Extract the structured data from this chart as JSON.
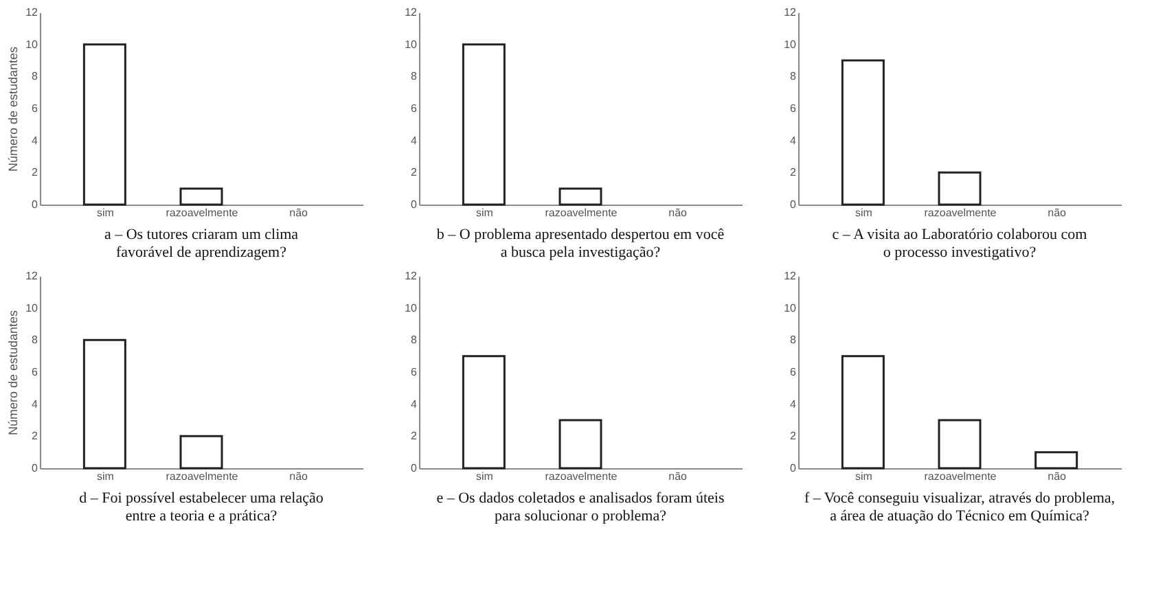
{
  "chart_data": [
    {
      "type": "bar",
      "title": [
        "a – Os tutores criaram um clima",
        "favorável de aprendizagem?"
      ],
      "ylabel": "Número de estudantes",
      "categories": [
        "sim",
        "razoavelmente",
        "não"
      ],
      "values": [
        10,
        1,
        0
      ],
      "color": "#ffffff",
      "ylim": [
        0,
        12
      ],
      "yticks": [
        0,
        2,
        4,
        6,
        8,
        10,
        12
      ],
      "grid": false
    },
    {
      "type": "bar",
      "title": [
        "b – O problema apresentado despertou em você",
        "a busca pela investigação?"
      ],
      "categories": [
        "sim",
        "razoavelmente",
        "não"
      ],
      "values": [
        10,
        1,
        0
      ],
      "color": "#ffffff",
      "ylim": [
        0,
        12
      ],
      "yticks": [
        0,
        2,
        4,
        6,
        8,
        10,
        12
      ],
      "grid": false
    },
    {
      "type": "bar",
      "title": [
        "c – A visita ao Laboratório colaborou com",
        "o processo investigativo?"
      ],
      "categories": [
        "sim",
        "razoavelmente",
        "não"
      ],
      "values": [
        9,
        2,
        0
      ],
      "color": "#ffffff",
      "ylim": [
        0,
        12
      ],
      "yticks": [
        0,
        2,
        4,
        6,
        8,
        10,
        12
      ],
      "grid": false
    },
    {
      "type": "bar",
      "title": [
        "d – Foi possível estabelecer uma relação",
        "entre a teoria e a prática?"
      ],
      "ylabel": "Número de estudantes",
      "categories": [
        "sim",
        "razoavelmente",
        "não"
      ],
      "values": [
        8,
        2,
        0
      ],
      "color": "#ffffff",
      "ylim": [
        0,
        12
      ],
      "yticks": [
        0,
        2,
        4,
        6,
        8,
        10,
        12
      ],
      "grid": false
    },
    {
      "type": "bar",
      "title": [
        "e – Os dados coletados e analisados foram úteis",
        "para solucionar o problema?"
      ],
      "categories": [
        "sim",
        "razoavelmente",
        "não"
      ],
      "values": [
        7,
        3,
        0
      ],
      "color": "#ffffff",
      "ylim": [
        0,
        12
      ],
      "yticks": [
        0,
        2,
        4,
        6,
        8,
        10,
        12
      ],
      "grid": false
    },
    {
      "type": "bar",
      "title": [
        "f – Você conseguiu visualizar, através do problema,",
        "a área de atuação do Técnico em Química?"
      ],
      "categories": [
        "sim",
        "razoavelmente",
        "não"
      ],
      "values": [
        7,
        3,
        1
      ],
      "color": "#ffffff",
      "ylim": [
        0,
        12
      ],
      "yticks": [
        0,
        2,
        4,
        6,
        8,
        10,
        12
      ],
      "grid": false
    }
  ]
}
